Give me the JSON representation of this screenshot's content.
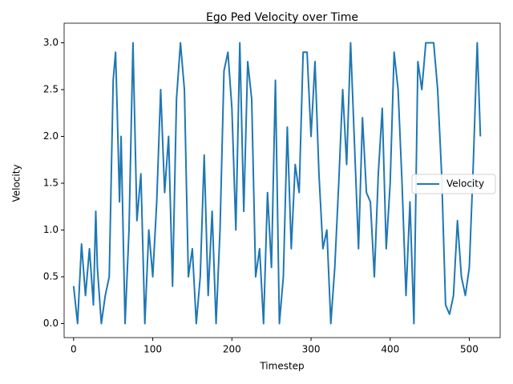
{
  "chart_data": {
    "type": "line",
    "title": "Ego Ped Velocity over Time",
    "x_label": "Timestep",
    "y_label": "Velocity",
    "x": [
      0,
      5,
      10,
      15,
      20,
      25,
      28,
      30,
      35,
      40,
      45,
      50,
      53,
      55,
      58,
      60,
      65,
      70,
      75,
      80,
      85,
      90,
      95,
      100,
      105,
      110,
      115,
      120,
      125,
      130,
      135,
      140,
      145,
      150,
      155,
      160,
      165,
      170,
      175,
      180,
      185,
      190,
      195,
      200,
      205,
      210,
      215,
      220,
      225,
      230,
      235,
      240,
      245,
      250,
      255,
      260,
      265,
      270,
      275,
      280,
      285,
      290,
      295,
      300,
      305,
      310,
      315,
      320,
      325,
      330,
      335,
      340,
      345,
      350,
      355,
      360,
      365,
      370,
      375,
      380,
      385,
      390,
      395,
      400,
      405,
      410,
      415,
      420,
      425,
      430,
      435,
      440,
      445,
      450,
      455,
      460,
      465,
      470,
      475,
      480,
      485,
      490,
      495,
      500,
      505,
      510,
      514
    ],
    "series": [
      {
        "name": "Velocity",
        "color": "#1f77b4",
        "values": [
          0.4,
          0.0,
          0.85,
          0.3,
          0.8,
          0.2,
          1.2,
          0.6,
          0.0,
          0.3,
          0.5,
          2.6,
          2.9,
          2.3,
          1.3,
          2.0,
          0.0,
          1.0,
          3.0,
          1.1,
          1.6,
          0.0,
          1.0,
          0.5,
          1.3,
          2.5,
          1.4,
          2.0,
          0.4,
          2.4,
          3.0,
          2.5,
          0.5,
          0.8,
          0.0,
          0.5,
          1.8,
          0.3,
          1.2,
          0.0,
          1.0,
          2.7,
          2.9,
          2.3,
          1.0,
          3.0,
          1.2,
          2.8,
          2.4,
          0.5,
          0.8,
          0.0,
          1.4,
          0.6,
          2.6,
          0.0,
          0.5,
          2.1,
          0.8,
          1.7,
          1.4,
          2.9,
          2.9,
          2.0,
          2.8,
          1.6,
          0.8,
          1.0,
          0.0,
          0.6,
          1.5,
          2.5,
          1.7,
          3.0,
          1.9,
          0.8,
          2.2,
          1.4,
          1.3,
          0.5,
          1.6,
          2.3,
          0.8,
          1.5,
          2.9,
          2.5,
          1.5,
          0.3,
          1.3,
          0.0,
          2.8,
          2.5,
          3.0,
          3.0,
          3.0,
          2.5,
          1.6,
          0.2,
          0.1,
          0.3,
          1.1,
          0.5,
          0.3,
          0.6,
          1.7,
          3.0,
          2.0
        ]
      }
    ],
    "xlim": [
      -12,
      539
    ],
    "xticks": [
      0,
      100,
      200,
      300,
      400,
      500
    ],
    "ylim": [
      -0.15,
      3.15
    ],
    "yticks": [
      {
        "value": 0,
        "label": "0.0"
      },
      {
        "value": 0.5,
        "label": "0.5"
      },
      {
        "value": 1,
        "label": "1.0"
      },
      {
        "value": 1.5,
        "label": "1.5"
      },
      {
        "value": 2,
        "label": "2.0"
      },
      {
        "value": 2.5,
        "label": "2.5"
      },
      {
        "value": 3,
        "label": "3.0"
      }
    ],
    "legend": "center right"
  }
}
